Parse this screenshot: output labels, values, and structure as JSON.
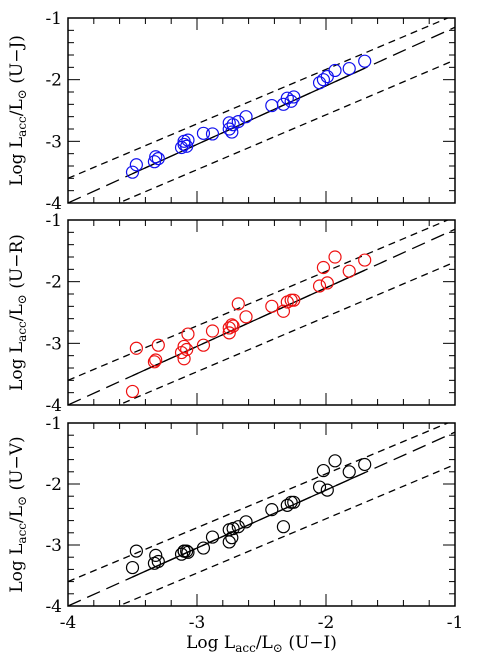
{
  "chart_data": [
    {
      "type": "scatter",
      "color": "#1010ee",
      "ylabel": [
        "Log L",
        "acc",
        "/L",
        "⊙",
        " (U−J)"
      ],
      "xlim": [
        -4,
        -1
      ],
      "ylim": [
        -4,
        -1
      ],
      "xticks": [
        -4,
        -3,
        -2,
        -1
      ],
      "yticks": [
        -4,
        -3,
        -2,
        -1
      ],
      "show_xtick_labels": false,
      "xminorticks": [
        -3.8,
        -3.6,
        -3.4,
        -3.2,
        -2.8,
        -2.6,
        -2.4,
        -2.2,
        -1.8,
        -1.6,
        -1.4,
        -1.2
      ],
      "yminorticks": [
        -3.8,
        -3.6,
        -3.4,
        -3.2,
        -2.8,
        -2.6,
        -2.4,
        -2.2,
        -1.8,
        -1.6,
        -1.4,
        -1.2
      ],
      "x": [
        -3.5,
        -3.47,
        -3.33,
        -3.32,
        -3.3,
        -3.12,
        -3.1,
        -3.1,
        -3.08,
        -3.07,
        -2.95,
        -2.88,
        -2.75,
        -2.75,
        -2.73,
        -2.72,
        -2.68,
        -2.62,
        -2.42,
        -2.33,
        -2.3,
        -2.27,
        -2.25,
        -2.05,
        -2.02,
        -1.99,
        -1.93,
        -1.82,
        -1.7
      ],
      "y": [
        -3.5,
        -3.38,
        -3.33,
        -3.25,
        -3.28,
        -3.1,
        -3.0,
        -3.05,
        -3.08,
        -2.98,
        -2.87,
        -2.88,
        -2.8,
        -2.7,
        -2.85,
        -2.73,
        -2.68,
        -2.6,
        -2.42,
        -2.4,
        -2.3,
        -2.35,
        -2.28,
        -2.05,
        -2.0,
        -1.95,
        -1.85,
        -1.82,
        -1.7
      ],
      "lines": [
        {
          "style": "solid",
          "x": [
            -3.5,
            -1.7
          ],
          "y": [
            -3.525,
            -1.815
          ]
        },
        {
          "style": "long-dash",
          "x": [
            -4,
            -1
          ],
          "y": [
            -4,
            -1.15
          ]
        },
        {
          "style": "short-dash",
          "x": [
            -4,
            -1
          ],
          "y": [
            -3.6,
            -0.95
          ]
        },
        {
          "style": "short-dash",
          "x": [
            -4,
            -1
          ],
          "y": [
            -4.35,
            -1.68
          ]
        }
      ]
    },
    {
      "type": "scatter",
      "color": "#ee1010",
      "ylabel": [
        "Log L",
        "acc",
        "/L",
        "⊙",
        " (U−R)"
      ],
      "xlim": [
        -4,
        -1
      ],
      "ylim": [
        -4,
        -1
      ],
      "xticks": [
        -4,
        -3,
        -2,
        -1
      ],
      "yticks": [
        -4,
        -3,
        -2,
        -1
      ],
      "show_xtick_labels": false,
      "xminorticks": [
        -3.8,
        -3.6,
        -3.4,
        -3.2,
        -2.8,
        -2.6,
        -2.4,
        -2.2,
        -1.8,
        -1.6,
        -1.4,
        -1.2
      ],
      "yminorticks": [
        -3.8,
        -3.6,
        -3.4,
        -3.2,
        -2.8,
        -2.6,
        -2.4,
        -2.2,
        -1.8,
        -1.6,
        -1.4,
        -1.2
      ],
      "x": [
        -3.5,
        -3.47,
        -3.33,
        -3.32,
        -3.3,
        -3.12,
        -3.1,
        -3.1,
        -3.08,
        -3.07,
        -2.95,
        -2.88,
        -2.75,
        -2.75,
        -2.73,
        -2.72,
        -2.68,
        -2.62,
        -2.42,
        -2.33,
        -2.3,
        -2.27,
        -2.25,
        -2.05,
        -2.02,
        -1.99,
        -1.93,
        -1.82,
        -1.7
      ],
      "y": [
        -3.78,
        -3.08,
        -3.3,
        -3.27,
        -3.03,
        -3.15,
        -3.25,
        -3.05,
        -3.1,
        -2.85,
        -3.03,
        -2.8,
        -2.83,
        -2.75,
        -2.7,
        -2.72,
        -2.36,
        -2.57,
        -2.4,
        -2.48,
        -2.33,
        -2.3,
        -2.3,
        -2.07,
        -1.77,
        -2.02,
        -1.6,
        -1.83,
        -1.65
      ],
      "lines": [
        {
          "style": "solid",
          "x": [
            -3.5,
            -1.7
          ],
          "y": [
            -3.525,
            -1.815
          ]
        },
        {
          "style": "long-dash",
          "x": [
            -4,
            -1
          ],
          "y": [
            -4,
            -1.15
          ]
        },
        {
          "style": "short-dash",
          "x": [
            -4,
            -1
          ],
          "y": [
            -3.6,
            -0.95
          ]
        },
        {
          "style": "short-dash",
          "x": [
            -4,
            -1
          ],
          "y": [
            -4.35,
            -1.68
          ]
        }
      ]
    },
    {
      "type": "scatter",
      "color": "#000000",
      "ylabel": [
        "Log L",
        "acc",
        "/L",
        "⊙",
        " (U−V)"
      ],
      "xlabel": [
        "Log L",
        "acc",
        "/L",
        "⊙",
        " (U−I)"
      ],
      "xlim": [
        -4,
        -1
      ],
      "ylim": [
        -4,
        -1
      ],
      "xticks": [
        -4,
        -3,
        -2,
        -1
      ],
      "yticks": [
        -4,
        -3,
        -2,
        -1
      ],
      "show_xtick_labels": true,
      "xminorticks": [
        -3.8,
        -3.6,
        -3.4,
        -3.2,
        -2.8,
        -2.6,
        -2.4,
        -2.2,
        -1.8,
        -1.6,
        -1.4,
        -1.2
      ],
      "yminorticks": [
        -3.8,
        -3.6,
        -3.4,
        -3.2,
        -2.8,
        -2.6,
        -2.4,
        -2.2,
        -1.8,
        -1.6,
        -1.4,
        -1.2
      ],
      "x": [
        -3.5,
        -3.47,
        -3.33,
        -3.32,
        -3.3,
        -3.12,
        -3.1,
        -3.1,
        -3.08,
        -3.07,
        -2.95,
        -2.88,
        -2.75,
        -2.75,
        -2.73,
        -2.72,
        -2.68,
        -2.62,
        -2.42,
        -2.33,
        -2.3,
        -2.27,
        -2.25,
        -2.05,
        -2.02,
        -1.99,
        -1.93,
        -1.82,
        -1.7
      ],
      "y": [
        -3.37,
        -3.1,
        -3.3,
        -3.17,
        -3.27,
        -3.15,
        -3.1,
        -3.1,
        -3.1,
        -3.12,
        -3.05,
        -2.87,
        -2.75,
        -2.95,
        -2.88,
        -2.73,
        -2.7,
        -2.62,
        -2.42,
        -2.7,
        -2.35,
        -2.3,
        -2.3,
        -2.05,
        -1.78,
        -2.1,
        -1.62,
        -1.8,
        -1.68
      ],
      "lines": [
        {
          "style": "solid",
          "x": [
            -3.5,
            -1.7
          ],
          "y": [
            -3.525,
            -1.815
          ]
        },
        {
          "style": "long-dash",
          "x": [
            -4,
            -1
          ],
          "y": [
            -4,
            -1.15
          ]
        },
        {
          "style": "short-dash",
          "x": [
            -4,
            -1
          ],
          "y": [
            -3.6,
            -0.95
          ]
        },
        {
          "style": "short-dash",
          "x": [
            -4,
            -1
          ],
          "y": [
            -4.35,
            -1.68
          ]
        }
      ]
    }
  ]
}
